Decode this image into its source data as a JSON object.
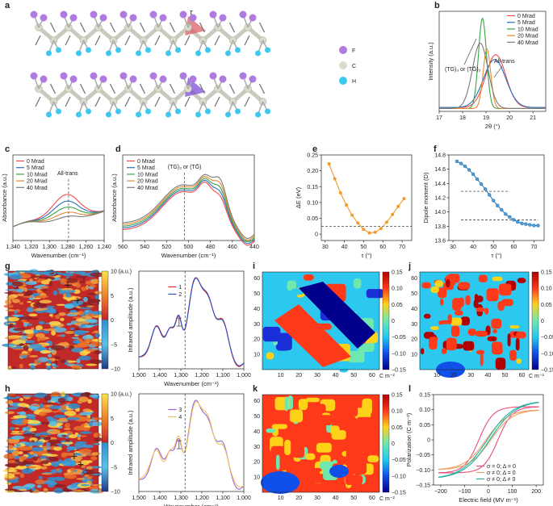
{
  "figure": {
    "panel_letters": [
      "a",
      "b",
      "c",
      "d",
      "e",
      "f",
      "g",
      "h",
      "i",
      "j",
      "k",
      "l"
    ],
    "molecule": {
      "tau_label": "τ",
      "atom_legend": [
        {
          "label": "F",
          "color": "#b07be0"
        },
        {
          "label": "C",
          "color": "#d9dccb"
        },
        {
          "label": "H",
          "color": "#3cc8ee"
        }
      ]
    },
    "colorbar_map_ticks": [
      "10 (a.u.)",
      "5",
      "0",
      "−5",
      "−10"
    ],
    "colorbar_sim_ticks": [
      "0.15",
      "0.10",
      "0.05",
      "0",
      "−0.05",
      "−0.10",
      "−0.15"
    ],
    "colorbar_sim_unit": "C m⁻²",
    "colors": {
      "mrad_0": "#f24a4a",
      "mrad_5": "#2d6fbf",
      "mrad_10": "#3aa34a",
      "mrad_20": "#e88a2e",
      "mrad_40": "#7a7a7a",
      "orange": "#f39a2a"
    }
  },
  "chart_data": [
    {
      "id": "b",
      "type": "line",
      "xlabel": "2θ (°)",
      "ylabel": "Intensity (a.u.)",
      "xlim": [
        17,
        21.8
      ],
      "xticks": [
        "17",
        "18",
        "19",
        "20",
        "21"
      ],
      "legend": [
        "0 Mrad",
        "5 Mrad",
        "10 Mrad",
        "20 Mrad",
        "40 Mrad"
      ],
      "annotations": [
        "(TG)₃ or (TḠ)₃",
        "All-trans"
      ]
    },
    {
      "id": "c",
      "type": "line",
      "xlabel": "Wavenumber (cm⁻¹)",
      "ylabel": "Absorbance (a.u.)",
      "xticks": [
        "1,340",
        "1,320",
        "1,300",
        "1,280",
        "1,260",
        "1,240"
      ],
      "legend": [
        "0 Mrad",
        "5 Mrad",
        "10 Mrad",
        "20 Mrad",
        "40 Mrad"
      ],
      "annotations": [
        "All-trans"
      ]
    },
    {
      "id": "d",
      "type": "line",
      "xlabel": "Wavenumber (cm⁻¹)",
      "ylabel": "Absorbance (a.u.)",
      "xticks": [
        "560",
        "540",
        "520",
        "500",
        "480",
        "460",
        "440"
      ],
      "legend": [
        "0 Mrad",
        "5 Mrad",
        "10 Mrad",
        "20 Mrad",
        "40 Mrad"
      ],
      "annotations": [
        "(TG)₃ or (TḠ)"
      ]
    },
    {
      "id": "e",
      "type": "line",
      "xlabel": "τ (°)",
      "ylabel": "ΔE (eV)",
      "xlim": [
        28,
        75
      ],
      "ylim": [
        -0.02,
        0.25
      ],
      "xticks": [
        "30",
        "40",
        "50",
        "60",
        "70"
      ],
      "yticks": [
        "0",
        "0.05",
        "0.10",
        "0.15",
        "0.20",
        "0.25"
      ],
      "x": [
        32,
        35,
        38,
        41,
        44,
        47,
        50,
        53,
        56,
        59,
        62,
        65,
        68,
        71
      ],
      "y": [
        0.222,
        0.175,
        0.13,
        0.092,
        0.06,
        0.035,
        0.015,
        0.004,
        0.006,
        0.018,
        0.038,
        0.062,
        0.088,
        0.112
      ],
      "reference_y": 0.025
    },
    {
      "id": "f",
      "type": "line",
      "xlabel": "τ (°)",
      "ylabel": "Dipole moment (D)",
      "xlim": [
        28,
        75
      ],
      "ylim": [
        13.6,
        14.8
      ],
      "xticks": [
        "30",
        "40",
        "50",
        "60",
        "70"
      ],
      "yticks": [
        "13.6",
        "13.8",
        "14.0",
        "14.2",
        "14.4",
        "14.6",
        "14.8"
      ],
      "x": [
        32,
        34,
        36,
        38,
        40,
        42,
        44,
        46,
        48,
        50,
        52,
        54,
        56,
        58,
        60,
        62,
        64,
        66,
        68,
        70,
        72
      ],
      "y": [
        14.71,
        14.68,
        14.64,
        14.59,
        14.53,
        14.46,
        14.39,
        14.32,
        14.24,
        14.16,
        14.09,
        14.03,
        13.97,
        13.93,
        13.89,
        13.86,
        13.84,
        13.83,
        13.82,
        13.81,
        13.81
      ],
      "reference_y": [
        14.29,
        13.89
      ]
    },
    {
      "id": "g",
      "type": "line",
      "xlabel": "Wavenumber (cm⁻¹)",
      "ylabel": "Infrared amplitude (a.u.)",
      "xticks": [
        "1,500",
        "1,400",
        "1,300",
        "1,200",
        "1,100",
        "1,000"
      ],
      "legend": [
        "1",
        "2"
      ]
    },
    {
      "id": "h",
      "type": "line",
      "xlabel": "Wavenumber (cm⁻¹)",
      "ylabel": "Infrared amplitude (a.u.)",
      "xticks": [
        "1,500",
        "1,400",
        "1,300",
        "1,200",
        "1,100",
        "1,000"
      ],
      "legend": [
        "3",
        "4"
      ]
    },
    {
      "id": "l",
      "type": "line",
      "xlabel": "Electric field (MV m⁻¹)",
      "ylabel": "Polarization (C m⁻²)",
      "xlim": [
        -230,
        230
      ],
      "ylim": [
        -0.15,
        0.15
      ],
      "xticks": [
        "−200",
        "−100",
        "0",
        "100",
        "200"
      ],
      "yticks": [
        "−0.15",
        "−0.10",
        "−0.05",
        "0",
        "0.05",
        "0.10",
        "0.15"
      ],
      "legend": [
        "σ = 0; Δ = 0",
        "σ ≠ 0; Δ = 0",
        "σ ≠ 0; Δ ≠ 0"
      ]
    },
    {
      "id": "i",
      "type": "heatmap",
      "xticks": [
        "10",
        "20",
        "30",
        "40",
        "50",
        "60"
      ],
      "yticks": [
        "10",
        "20",
        "30",
        "40",
        "50",
        "60"
      ],
      "unit": "C m⁻²"
    },
    {
      "id": "j",
      "type": "heatmap",
      "xticks": [
        "10",
        "20",
        "30",
        "40",
        "50",
        "60"
      ],
      "yticks": [
        "10",
        "20",
        "30",
        "40",
        "50",
        "60"
      ],
      "unit": "C m⁻²"
    },
    {
      "id": "k",
      "type": "heatmap",
      "xticks": [
        "10",
        "20",
        "30",
        "40",
        "50",
        "60"
      ],
      "yticks": [
        "10",
        "20",
        "30",
        "40",
        "50",
        "60"
      ],
      "unit": "C m⁻²"
    }
  ]
}
